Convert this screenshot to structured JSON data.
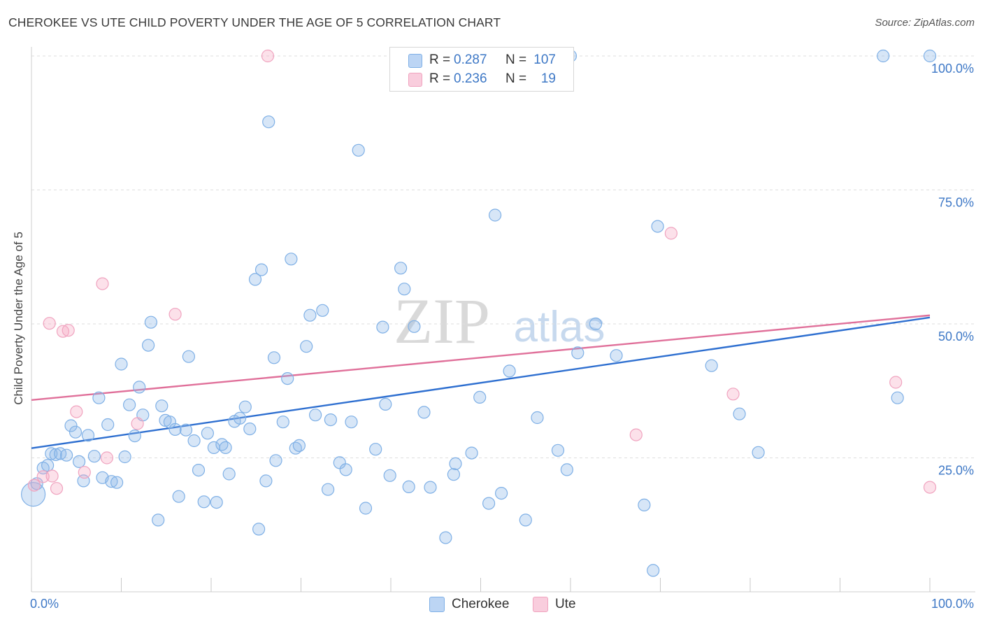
{
  "title": "CHEROKEE VS UTE CHILD POVERTY UNDER THE AGE OF 5 CORRELATION CHART",
  "source": "Source: ZipAtlas.com",
  "legend": {
    "rows": [
      {
        "r_label": "R =",
        "r_value": "0.287",
        "n_label": "N =",
        "n_value": "107"
      },
      {
        "r_label": "R =",
        "r_value": "0.236",
        "n_label": "N =",
        "n_value": "19"
      }
    ]
  },
  "bottom_legend": {
    "items": [
      "Cherokee",
      "Ute"
    ]
  },
  "watermark": {
    "zip": "ZIP",
    "atlas": "atlas"
  },
  "chart_data": {
    "type": "scatter",
    "title": "CHEROKEE VS UTE CHILD POVERTY UNDER THE AGE OF 5 CORRELATION CHART",
    "xlabel": "",
    "ylabel": "Child Poverty Under the Age of 5",
    "xlim": [
      0,
      100
    ],
    "ylim": [
      0,
      100
    ],
    "x_tick_labels": [
      "0.0%",
      "100.0%"
    ],
    "y_tick_labels": [
      "25.0%",
      "50.0%",
      "75.0%",
      "100.0%"
    ],
    "y_ticks": [
      25,
      50,
      75,
      100
    ],
    "grid": true,
    "legend_position": "top-center",
    "colors": {
      "Cherokee": "#7fb0e6",
      "Ute": "#f0a3bf",
      "Cherokee_line": "#2e6fd0",
      "Ute_line": "#e0709a",
      "tick_text": "#3e78c6"
    },
    "series": [
      {
        "name": "Cherokee",
        "r": 0.287,
        "n": 107,
        "trend": {
          "x": [
            0,
            100
          ],
          "y": [
            26.8,
            51.2
          ]
        },
        "points": [
          [
            0.2,
            18.2
          ],
          [
            0.6,
            20.2
          ],
          [
            1.3,
            23.1
          ],
          [
            1.8,
            23.6
          ],
          [
            2.2,
            25.8
          ],
          [
            2.7,
            25.6
          ],
          [
            3.2,
            25.8
          ],
          [
            3.9,
            25.5
          ],
          [
            4.4,
            31.0
          ],
          [
            4.9,
            29.8
          ],
          [
            5.3,
            24.3
          ],
          [
            5.8,
            20.7
          ],
          [
            6.3,
            29.2
          ],
          [
            7.0,
            25.3
          ],
          [
            7.5,
            36.2
          ],
          [
            7.9,
            21.3
          ],
          [
            8.5,
            31.2
          ],
          [
            8.9,
            20.6
          ],
          [
            9.5,
            20.4
          ],
          [
            10.0,
            42.5
          ],
          [
            10.4,
            25.2
          ],
          [
            10.9,
            34.9
          ],
          [
            11.5,
            29.1
          ],
          [
            12.0,
            38.2
          ],
          [
            12.4,
            33.0
          ],
          [
            13.0,
            46.0
          ],
          [
            13.3,
            50.3
          ],
          [
            14.1,
            13.4
          ],
          [
            14.5,
            34.7
          ],
          [
            14.9,
            32.0
          ],
          [
            15.4,
            31.7
          ],
          [
            16.0,
            30.3
          ],
          [
            16.4,
            17.8
          ],
          [
            17.2,
            30.2
          ],
          [
            17.5,
            43.9
          ],
          [
            18.1,
            28.2
          ],
          [
            18.6,
            22.7
          ],
          [
            19.2,
            16.8
          ],
          [
            19.6,
            29.6
          ],
          [
            20.3,
            26.9
          ],
          [
            20.6,
            16.7
          ],
          [
            21.2,
            27.5
          ],
          [
            21.6,
            26.9
          ],
          [
            22.0,
            22.0
          ],
          [
            22.6,
            31.8
          ],
          [
            23.2,
            32.4
          ],
          [
            23.8,
            34.5
          ],
          [
            24.3,
            30.4
          ],
          [
            24.9,
            58.3
          ],
          [
            25.3,
            11.7
          ],
          [
            25.6,
            60.1
          ],
          [
            26.1,
            20.7
          ],
          [
            26.4,
            87.7
          ],
          [
            27.0,
            43.7
          ],
          [
            27.2,
            24.5
          ],
          [
            28.0,
            31.7
          ],
          [
            28.5,
            39.8
          ],
          [
            28.9,
            62.1
          ],
          [
            29.4,
            26.8
          ],
          [
            29.8,
            27.3
          ],
          [
            30.6,
            45.8
          ],
          [
            31.0,
            51.6
          ],
          [
            31.6,
            33.0
          ],
          [
            32.4,
            52.5
          ],
          [
            33.0,
            19.1
          ],
          [
            33.3,
            32.1
          ],
          [
            34.3,
            24.1
          ],
          [
            35.0,
            22.8
          ],
          [
            35.6,
            31.7
          ],
          [
            36.4,
            82.4
          ],
          [
            37.2,
            15.6
          ],
          [
            38.3,
            26.6
          ],
          [
            39.1,
            49.4
          ],
          [
            39.4,
            35.0
          ],
          [
            39.9,
            21.7
          ],
          [
            41.1,
            60.4
          ],
          [
            41.5,
            56.5
          ],
          [
            42.0,
            19.6
          ],
          [
            42.6,
            49.5
          ],
          [
            43.7,
            33.5
          ],
          [
            44.4,
            19.5
          ],
          [
            46.1,
            10.1
          ],
          [
            47.0,
            21.9
          ],
          [
            47.2,
            23.9
          ],
          [
            49.0,
            25.9
          ],
          [
            49.9,
            36.3
          ],
          [
            50.9,
            16.5
          ],
          [
            51.6,
            70.3
          ],
          [
            52.3,
            18.4
          ],
          [
            53.2,
            41.2
          ],
          [
            55.0,
            13.4
          ],
          [
            56.3,
            32.5
          ],
          [
            58.6,
            26.4
          ],
          [
            59.6,
            22.8
          ],
          [
            60.0,
            100.0
          ],
          [
            60.8,
            44.6
          ],
          [
            62.8,
            50.0
          ],
          [
            65.1,
            44.1
          ],
          [
            68.2,
            16.2
          ],
          [
            69.2,
            4.0
          ],
          [
            69.7,
            68.2
          ],
          [
            75.7,
            42.2
          ],
          [
            78.8,
            33.2
          ],
          [
            80.9,
            26.0
          ],
          [
            94.8,
            100.0
          ],
          [
            96.4,
            36.2
          ],
          [
            100.0,
            100.0
          ]
        ]
      },
      {
        "name": "Ute",
        "r": 0.236,
        "n": 19,
        "trend": {
          "x": [
            0,
            100
          ],
          "y": [
            35.8,
            51.6
          ]
        },
        "points": [
          [
            0.3,
            19.9
          ],
          [
            1.3,
            21.5
          ],
          [
            2.0,
            50.1
          ],
          [
            2.3,
            21.6
          ],
          [
            2.8,
            19.3
          ],
          [
            3.5,
            48.6
          ],
          [
            4.1,
            48.8
          ],
          [
            5.0,
            33.6
          ],
          [
            5.9,
            22.3
          ],
          [
            7.9,
            57.5
          ],
          [
            8.4,
            25.0
          ],
          [
            11.8,
            31.4
          ],
          [
            16.0,
            51.8
          ],
          [
            26.3,
            100.0
          ],
          [
            67.3,
            29.3
          ],
          [
            71.2,
            66.9
          ],
          [
            78.1,
            36.9
          ],
          [
            96.2,
            39.1
          ],
          [
            100.0,
            19.5
          ]
        ]
      }
    ]
  }
}
